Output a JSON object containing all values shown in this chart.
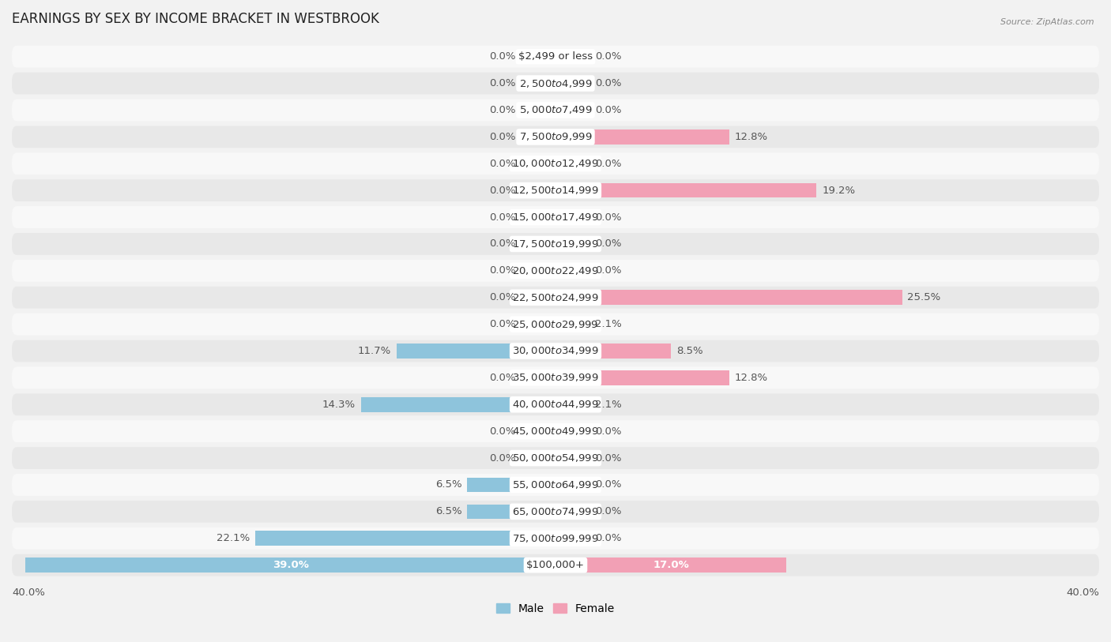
{
  "title": "EARNINGS BY SEX BY INCOME BRACKET IN WESTBROOK",
  "source": "Source: ZipAtlas.com",
  "categories": [
    "$2,499 or less",
    "$2,500 to $4,999",
    "$5,000 to $7,499",
    "$7,500 to $9,999",
    "$10,000 to $12,499",
    "$12,500 to $14,999",
    "$15,000 to $17,499",
    "$17,500 to $19,999",
    "$20,000 to $22,499",
    "$22,500 to $24,999",
    "$25,000 to $29,999",
    "$30,000 to $34,999",
    "$35,000 to $39,999",
    "$40,000 to $44,999",
    "$45,000 to $49,999",
    "$50,000 to $54,999",
    "$55,000 to $64,999",
    "$65,000 to $74,999",
    "$75,000 to $99,999",
    "$100,000+"
  ],
  "male_values": [
    0.0,
    0.0,
    0.0,
    0.0,
    0.0,
    0.0,
    0.0,
    0.0,
    0.0,
    0.0,
    0.0,
    11.7,
    0.0,
    14.3,
    0.0,
    0.0,
    6.5,
    6.5,
    22.1,
    39.0
  ],
  "female_values": [
    0.0,
    0.0,
    0.0,
    12.8,
    0.0,
    19.2,
    0.0,
    0.0,
    0.0,
    25.5,
    2.1,
    8.5,
    12.8,
    2.1,
    0.0,
    0.0,
    0.0,
    0.0,
    0.0,
    17.0
  ],
  "male_color": "#8ec4dc",
  "female_color": "#f2a0b5",
  "background_color": "#f2f2f2",
  "row_color_odd": "#e8e8e8",
  "row_color_even": "#f8f8f8",
  "axis_max": 40.0,
  "min_bar_width": 2.5,
  "label_fontsize": 9.5,
  "category_fontsize": 9.5,
  "title_fontsize": 12,
  "legend_male": "Male",
  "legend_female": "Female"
}
